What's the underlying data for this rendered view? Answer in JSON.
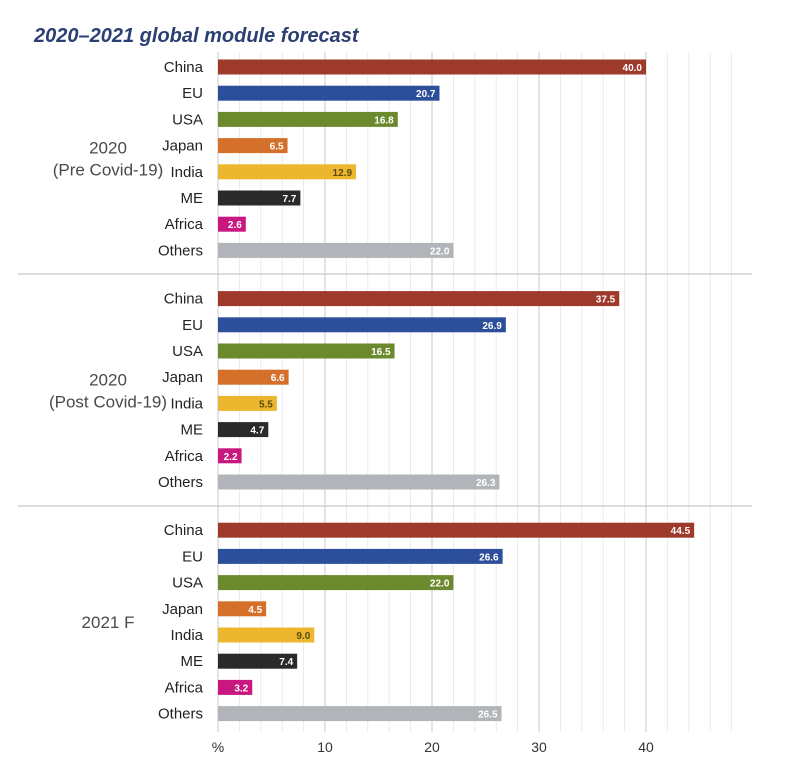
{
  "chart_data": {
    "type": "bar",
    "orientation": "horizontal",
    "title": "2020–2021 global module forecast",
    "xlabel": "%",
    "ylabel": "",
    "xlim": [
      0,
      49
    ],
    "x_ticks": [
      {
        "value": 0,
        "label": "%"
      },
      {
        "value": 10,
        "label": "10"
      },
      {
        "value": 20,
        "label": "20"
      },
      {
        "value": 30,
        "label": "30"
      },
      {
        "value": 40,
        "label": "40"
      }
    ],
    "grid": "vertical gridlines",
    "categories": [
      "China",
      "EU",
      "USA",
      "Japan",
      "India",
      "ME",
      "Africa",
      "Others"
    ],
    "category_colors": {
      "China": "#9e3a2b",
      "EU": "#2d4f9b",
      "USA": "#6b8a2e",
      "Japan": "#d4702a",
      "India": "#edb62f",
      "ME": "#2a2a2a",
      "Africa": "#c8187f",
      "Others": "#b1b5ba"
    },
    "value_label_colors": {
      "China": "#ffffff",
      "EU": "#ffffff",
      "USA": "#ffffff",
      "Japan": "#ffffff",
      "India": "#5a4a10",
      "ME": "#ffffff",
      "Africa": "#ffffff",
      "Others": "#ffffff"
    },
    "groups": [
      {
        "label": [
          "2020",
          "(Pre Covid-19)"
        ],
        "values": [
          40.0,
          20.7,
          16.8,
          6.5,
          12.9,
          7.7,
          2.6,
          22.0
        ]
      },
      {
        "label": [
          "2020",
          "(Post Covid-19)"
        ],
        "values": [
          37.5,
          26.9,
          16.5,
          6.6,
          5.5,
          4.7,
          2.2,
          26.3
        ]
      },
      {
        "label": [
          "2021 F"
        ],
        "values": [
          44.5,
          26.6,
          22.0,
          4.5,
          9.0,
          7.4,
          3.2,
          26.5
        ]
      }
    ]
  }
}
